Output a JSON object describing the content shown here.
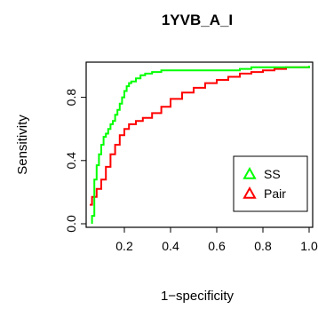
{
  "chart_data": {
    "type": "line",
    "title": "1YVB_A_I",
    "xlabel": "1−specificity",
    "ylabel": "Sensitivity",
    "xlim": [
      0.05,
      1.0
    ],
    "ylim": [
      0.0,
      1.0
    ],
    "xticks": [
      0.2,
      0.4,
      0.6,
      0.8,
      1.0
    ],
    "xtick_labels": [
      "0.2",
      "0.4",
      "0.6",
      "0.8",
      "1.0"
    ],
    "yticks": [
      0.0,
      0.4,
      0.8
    ],
    "ytick_labels": [
      "0.0",
      "0.4",
      "0.8"
    ],
    "grid": false,
    "legend_position": "bottom-right",
    "series": [
      {
        "name": "SS",
        "color": "#00ff00",
        "marker": "triangle",
        "x": [
          0.06,
          0.06,
          0.07,
          0.08,
          0.09,
          0.1,
          0.11,
          0.12,
          0.13,
          0.14,
          0.15,
          0.16,
          0.17,
          0.18,
          0.19,
          0.2,
          0.21,
          0.22,
          0.23,
          0.25,
          0.27,
          0.29,
          0.32,
          0.36,
          0.4,
          0.5,
          0.6,
          0.7,
          0.75,
          0.8,
          0.9,
          1.0
        ],
        "y": [
          0.0,
          0.05,
          0.28,
          0.37,
          0.44,
          0.5,
          0.55,
          0.57,
          0.6,
          0.63,
          0.65,
          0.69,
          0.72,
          0.76,
          0.8,
          0.84,
          0.87,
          0.89,
          0.9,
          0.92,
          0.94,
          0.95,
          0.96,
          0.97,
          0.97,
          0.97,
          0.97,
          0.98,
          0.99,
          0.99,
          0.99,
          1.0
        ]
      },
      {
        "name": "Pair",
        "color": "#ff0000",
        "marker": "triangle",
        "x": [
          0.05,
          0.06,
          0.08,
          0.1,
          0.12,
          0.14,
          0.16,
          0.18,
          0.2,
          0.22,
          0.25,
          0.28,
          0.32,
          0.36,
          0.4,
          0.45,
          0.5,
          0.55,
          0.6,
          0.65,
          0.7,
          0.75,
          0.8,
          0.85,
          0.9,
          0.95,
          1.0
        ],
        "y": [
          0.12,
          0.17,
          0.22,
          0.28,
          0.36,
          0.44,
          0.5,
          0.56,
          0.6,
          0.63,
          0.65,
          0.67,
          0.7,
          0.74,
          0.79,
          0.83,
          0.86,
          0.89,
          0.91,
          0.93,
          0.95,
          0.96,
          0.97,
          0.98,
          0.99,
          0.99,
          1.0
        ]
      }
    ]
  }
}
